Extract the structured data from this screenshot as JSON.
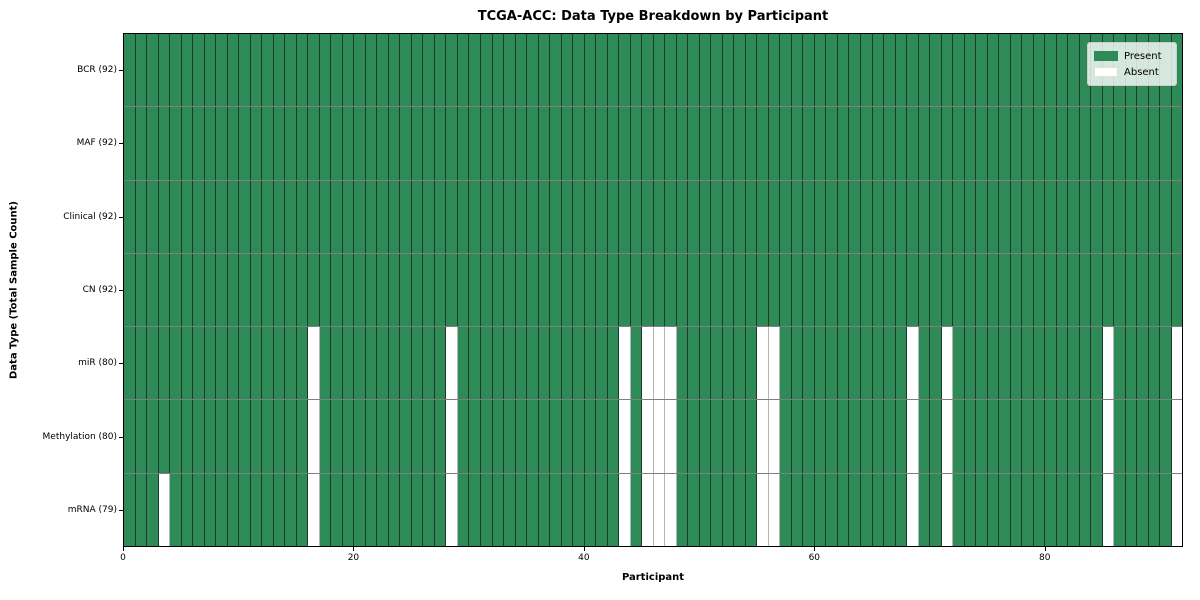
{
  "title": "TCGA-ACC: Data Type Breakdown by Participant",
  "xlabel": "Participant",
  "ylabel": "Data Type (Total Sample Count)",
  "legend": {
    "present_label": "Present",
    "absent_label": "Absent"
  },
  "colors": {
    "present": "#2e8b57",
    "absent": "#ffffff",
    "cell_edge": "#1d3b2a",
    "absent_edge": "#b5b5b5",
    "row_separator": "#7f7f7f"
  },
  "chart_data": {
    "type": "heatmap",
    "title": "TCGA-ACC: Data Type Breakdown by Participant",
    "xlabel": "Participant",
    "ylabel": "Data Type (Total Sample Count)",
    "x_range": [
      0,
      92
    ],
    "x_ticks": [
      0,
      20,
      40,
      60,
      80
    ],
    "n_participants": 92,
    "grid": false,
    "legend_position": "upper right",
    "legend_entries": [
      "Present",
      "Absent"
    ],
    "rows": [
      {
        "label": "BCR (92)",
        "data_type": "BCR",
        "present_count": 92,
        "absent_participants": []
      },
      {
        "label": "MAF (92)",
        "data_type": "MAF",
        "present_count": 92,
        "absent_participants": []
      },
      {
        "label": "Clinical (92)",
        "data_type": "Clinical",
        "present_count": 92,
        "absent_participants": []
      },
      {
        "label": "CN (92)",
        "data_type": "CN",
        "present_count": 92,
        "absent_participants": []
      },
      {
        "label": "miR (80)",
        "data_type": "miR",
        "present_count": 80,
        "absent_participants": [
          16,
          28,
          43,
          45,
          46,
          47,
          55,
          56,
          68,
          71,
          85,
          91
        ]
      },
      {
        "label": "Methylation (80)",
        "data_type": "Methylation",
        "present_count": 80,
        "absent_participants": [
          16,
          28,
          43,
          45,
          46,
          47,
          55,
          56,
          68,
          71,
          85,
          91
        ]
      },
      {
        "label": "mRNA (79)",
        "data_type": "mRNA",
        "present_count": 79,
        "absent_participants": [
          3,
          16,
          28,
          43,
          45,
          46,
          47,
          55,
          56,
          68,
          71,
          85,
          91
        ]
      }
    ]
  }
}
